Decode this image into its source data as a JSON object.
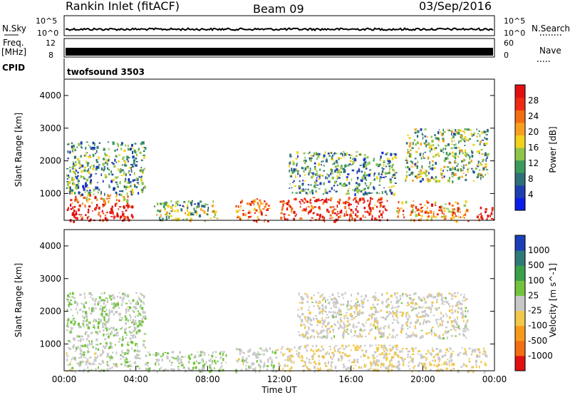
{
  "header": {
    "station": "Rankin Inlet (fitACF)",
    "beam": "Beam 09",
    "date": "03/Sep/2016"
  },
  "strips": {
    "nsky_label": "N.Sky",
    "nsky_ticks": [
      "10^5",
      "10^0"
    ],
    "nsearch_label": "N.Search",
    "nsearch_ticks": [
      "10^5",
      "10^0"
    ],
    "freq_label": "Freq.",
    "freq_unit": "[MHz]",
    "freq_ticks": [
      "12",
      "8"
    ],
    "nave_label": "Nave",
    "nave_ticks": [
      "60",
      "0"
    ],
    "cpid_label": "CPID",
    "cpid_value": "twofsound 3503"
  },
  "chart_data": [
    {
      "type": "heatmap",
      "panel": "power",
      "ylabel": "Slant Range [km]",
      "x_range_hours": [
        0,
        24
      ],
      "y_range_km": [
        180,
        4500
      ],
      "y_ticks": [
        1000,
        2000,
        3000,
        4000
      ],
      "colorbar": {
        "label": "Power [dB]",
        "ticks": [
          "4",
          "8",
          "12",
          "16",
          "20",
          "24",
          "28"
        ],
        "colors": [
          "#0a1ee8",
          "#1f3fb0",
          "#2f6f78",
          "#3d9a5c",
          "#8fc44a",
          "#f2d21a",
          "#f7a020",
          "#f36d12",
          "#ee2a14",
          "#e01010"
        ]
      },
      "echo_regions": [
        {
          "start_h": 0.1,
          "end_h": 3.9,
          "range_km": [
            180,
            700
          ],
          "level": 28
        },
        {
          "start_h": 0.3,
          "end_h": 3.6,
          "range_km": [
            700,
            1000
          ],
          "level": 20
        },
        {
          "start_h": 0.1,
          "end_h": 4.5,
          "range_km": [
            1000,
            2600
          ],
          "level": 12
        },
        {
          "start_h": 5.0,
          "end_h": 8.5,
          "range_km": [
            180,
            800
          ],
          "level": 14
        },
        {
          "start_h": 9.5,
          "end_h": 11.5,
          "range_km": [
            180,
            850
          ],
          "level": 22
        },
        {
          "start_h": 12.0,
          "end_h": 18.0,
          "range_km": [
            180,
            900
          ],
          "level": 26
        },
        {
          "start_h": 12.5,
          "end_h": 18.5,
          "range_km": [
            1000,
            2300
          ],
          "level": 12
        },
        {
          "start_h": 18.5,
          "end_h": 22.5,
          "range_km": [
            180,
            800
          ],
          "level": 20
        },
        {
          "start_h": 19.0,
          "end_h": 23.6,
          "range_km": [
            1400,
            3000
          ],
          "level": 14
        },
        {
          "start_h": 23.0,
          "end_h": 24.0,
          "range_km": [
            180,
            600
          ],
          "level": 28
        }
      ]
    },
    {
      "type": "heatmap",
      "panel": "velocity",
      "ylabel": "Slant Range [km]",
      "xlabel": "Time UT",
      "x_range_hours": [
        0,
        24
      ],
      "x_ticks": [
        "00:00",
        "04:00",
        "08:00",
        "12:00",
        "16:00",
        "20:00",
        "00:00"
      ],
      "y_range_km": [
        180,
        4500
      ],
      "y_ticks": [
        1000,
        2000,
        3000,
        4000
      ],
      "colorbar": {
        "label": "Velocity [m s^-1]",
        "ticks": [
          "1000",
          "500",
          "100",
          "25",
          "-25",
          "-100",
          "-500",
          "-1000"
        ],
        "colors": [
          "#1a3fb8",
          "#2f7a78",
          "#3aa04a",
          "#72c43e",
          "#c8c8c8",
          "#f2c84a",
          "#f79a1c",
          "#f36d12",
          "#e01010"
        ]
      },
      "echo_regions": [
        {
          "start_h": 0.1,
          "end_h": 4.2,
          "range_km": [
            180,
            900
          ],
          "level": 25
        },
        {
          "start_h": 0.1,
          "end_h": 4.5,
          "range_km": [
            900,
            2600
          ],
          "level": 100
        },
        {
          "start_h": 4.5,
          "end_h": 9.0,
          "range_km": [
            180,
            800
          ],
          "level": 100
        },
        {
          "start_h": 9.5,
          "end_h": 12.0,
          "range_km": [
            180,
            900
          ],
          "level": 25
        },
        {
          "start_h": 12.0,
          "end_h": 18.5,
          "range_km": [
            180,
            1000
          ],
          "level": -100
        },
        {
          "start_h": 13.0,
          "end_h": 22.5,
          "range_km": [
            1200,
            2600
          ],
          "level": -25
        },
        {
          "start_h": 18.5,
          "end_h": 23.5,
          "range_km": [
            180,
            900
          ],
          "level": -100
        }
      ]
    }
  ]
}
